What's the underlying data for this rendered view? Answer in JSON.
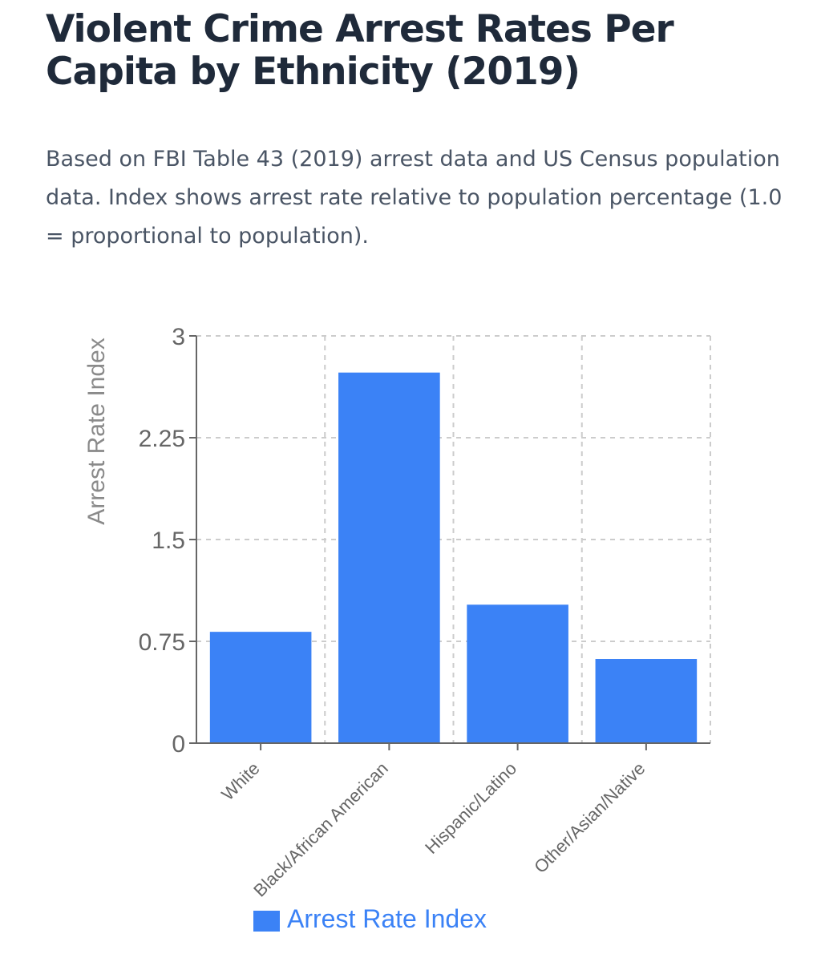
{
  "chart_data": {
    "type": "bar",
    "title": "Violent Crime Arrest Rates Per Capita by Ethnicity (2019)",
    "subtitle": "Based on FBI Table 43 (2019) arrest data and US Census population data. Index shows arrest rate relative to population percentage (1.0 = proportional to population).",
    "categories": [
      "White",
      "Black/African American",
      "Hispanic/Latino",
      "Other/Asian/Native"
    ],
    "series": [
      {
        "name": "Arrest Rate Index",
        "values": [
          0.82,
          2.73,
          1.02,
          0.62
        ],
        "color": "#3b82f6"
      }
    ],
    "xlabel": "",
    "ylabel": "Arrest Rate Index",
    "ylim": [
      0,
      3
    ],
    "yticks": [
      0,
      0.75,
      1.5,
      2.25,
      3
    ],
    "ytick_labels": [
      "0",
      "0.75",
      "1.5",
      "2.25",
      "3"
    ],
    "grid": true,
    "legend": "bottom-center"
  }
}
